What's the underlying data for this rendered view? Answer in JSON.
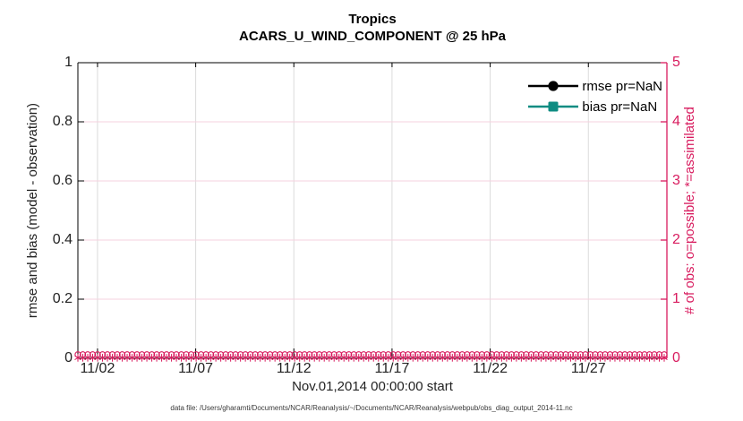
{
  "title": {
    "line1": "Tropics",
    "line2": "ACARS_U_WIND_COMPONENT @ 25 hPa"
  },
  "left_axis": {
    "label": "rmse and bias (model - observation)",
    "tick_labels": [
      "0",
      "0.2",
      "0.4",
      "0.6",
      "0.8",
      "1"
    ],
    "tick_values": [
      0,
      0.2,
      0.4,
      0.6,
      0.8,
      1
    ],
    "ylim": [
      0,
      1
    ],
    "color": "#000000"
  },
  "right_axis": {
    "label": "# of obs: o=possible; *=assimilated",
    "tick_labels": [
      "0",
      "1",
      "2",
      "3",
      "4",
      "5"
    ],
    "tick_values": [
      0,
      1,
      2,
      3,
      4,
      5
    ],
    "ylim": [
      0,
      5
    ],
    "color": "#D81B5E"
  },
  "x_axis": {
    "label": "Nov.01,2014 00:00:00 start",
    "tick_labels": [
      "11/02",
      "11/07",
      "11/12",
      "11/17",
      "11/22",
      "11/27"
    ],
    "tick_days": [
      1,
      6,
      11,
      16,
      21,
      26
    ],
    "range_days": [
      0,
      30
    ]
  },
  "legend": {
    "items": [
      {
        "label": "rmse pr=NaN",
        "color": "#000000",
        "marker": "filled-circle"
      },
      {
        "label": "bias pr=NaN",
        "color": "#0E8C82",
        "marker": "filled-square"
      }
    ]
  },
  "footer": "data file: /Users/gharamti/Documents/NCAR/Reanalysis/~/Documents/NCAR/Reanalysis/webpub/obs_diag_output_2014-11.nc",
  "colors": {
    "obs": "#D81B5E",
    "teal": "#0E8C82",
    "vgrid": "#DBDBDB",
    "hgrid": "#F6D2DF",
    "axis": "#000000",
    "tick_text": "#232323"
  },
  "chart_data": {
    "type": "line",
    "title": "Tropics",
    "subtitle": "ACARS_U_WIND_COMPONENT @ 25 hPa",
    "xlabel": "Nov.01,2014 00:00:00 start",
    "x_range_days": [
      0,
      30
    ],
    "x_tick_days": [
      1,
      6,
      11,
      16,
      21,
      26
    ],
    "x_tick_labels": [
      "11/02",
      "11/07",
      "11/12",
      "11/17",
      "11/22",
      "11/27"
    ],
    "left_ylabel": "rmse and bias (model - observation)",
    "left_ylim": [
      0,
      1
    ],
    "right_ylabel": "# of obs: o=possible; *=assimilated",
    "right_ylim": [
      0,
      5
    ],
    "grid": true,
    "legend_position": "top-right-inside",
    "series": [
      {
        "name": "rmse pr=NaN",
        "axis": "left",
        "marker": "filled-circle",
        "color": "#000000",
        "values": "all NaN - no curve drawn"
      },
      {
        "name": "bias pr=NaN",
        "axis": "left",
        "marker": "filled-square",
        "color": "#0E8C82",
        "values": "all NaN - no curve drawn"
      },
      {
        "name": "# obs possible (o)",
        "axis": "right",
        "marker": "open-circle",
        "color": "#D81B5E",
        "n_points": 120,
        "constant_value": 0
      },
      {
        "name": "# obs assimilated (*)",
        "axis": "right",
        "marker": "asterisk",
        "color": "#D81B5E",
        "n_points": 120,
        "constant_value": 0
      }
    ]
  }
}
